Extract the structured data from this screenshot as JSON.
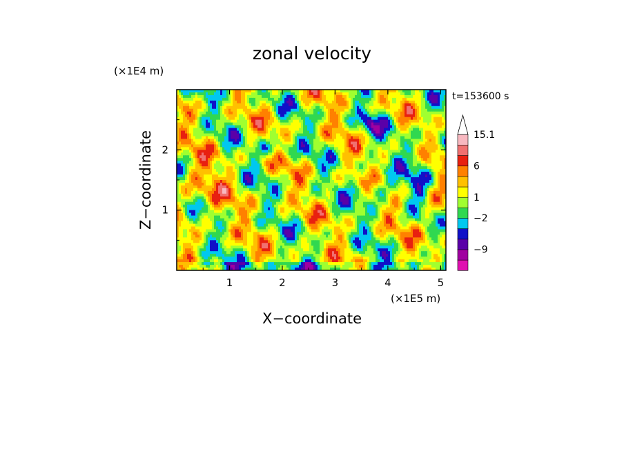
{
  "chart_data": {
    "type": "heatmap",
    "title": "zonal velocity",
    "xlabel": "X−coordinate",
    "ylabel": "Z−coordinate",
    "x_unit": "(×1E5 m)",
    "y_unit": "(×1E4 m)",
    "time_label": "t=153600 s",
    "xlim": [
      0,
      5.1
    ],
    "ylim": [
      0,
      3.0
    ],
    "x_ticks": [
      1,
      2,
      3,
      4,
      5
    ],
    "y_ticks": [
      1,
      2
    ],
    "x_tick_labels": [
      "1",
      "2",
      "3",
      "4",
      "5"
    ],
    "y_tick_labels": [
      "1",
      "2"
    ],
    "colorbar": {
      "extend": "max",
      "levels": [
        {
          "color": "#e010b0"
        },
        {
          "color": "#a000a0"
        },
        {
          "color": "#5a00a8"
        },
        {
          "color": "#1010c8"
        },
        {
          "color": "#00c8f0"
        },
        {
          "color": "#30d850"
        },
        {
          "color": "#a0ff30"
        },
        {
          "color": "#ffff00"
        },
        {
          "color": "#ffc000"
        },
        {
          "color": "#ff8000"
        },
        {
          "color": "#e82010"
        },
        {
          "color": "#f07070"
        },
        {
          "color": "#f8b8c0"
        }
      ],
      "labels": [
        {
          "text": "−9",
          "level": 2
        },
        {
          "text": "−2",
          "level": 5
        },
        {
          "text": "1",
          "level": 7
        },
        {
          "text": "6",
          "level": 10
        },
        {
          "text": "15.1",
          "level": 13
        }
      ]
    }
  }
}
